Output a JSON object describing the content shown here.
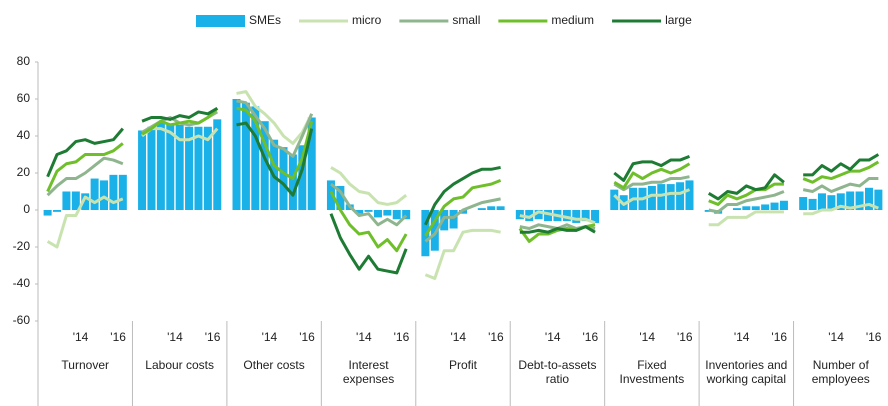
{
  "chart_data": {
    "type": "bar-line",
    "groups": [
      "Turnover",
      "Labour costs",
      "Other costs",
      "Interest expenses",
      "Profit",
      "Debt-to-assets ratio",
      "Fixed Investments",
      "Inventories and working capital",
      "Number of employees"
    ],
    "x": [
      null,
      null,
      null,
      "'14",
      null,
      null,
      null,
      "'16",
      null
    ],
    "ylim": [
      -60,
      80
    ],
    "yticks": [
      -60,
      -40,
      -20,
      0,
      20,
      40,
      60,
      80
    ],
    "grid": false,
    "series": [
      {
        "name": "SMEs",
        "type": "bar",
        "color": "#1ab0e8",
        "values": [
          [
            -3,
            -1,
            10,
            10,
            9,
            17,
            16,
            19,
            19
          ],
          [
            43,
            45,
            47,
            46,
            46,
            45,
            45,
            45,
            49
          ],
          [
            60,
            58,
            56,
            48,
            38,
            34,
            30,
            35,
            50
          ],
          [
            16,
            13,
            3,
            -2,
            -1,
            -4,
            -3,
            -5,
            -5
          ],
          [
            -25,
            -22,
            -11,
            -10,
            -2,
            0,
            1,
            2,
            2
          ],
          [
            -5,
            -6,
            -5,
            -6,
            -6,
            -6,
            -7,
            -6,
            -7
          ],
          [
            11,
            8,
            12,
            12,
            13,
            14,
            14,
            15,
            16
          ],
          [
            -1,
            -2,
            0,
            1,
            2,
            2,
            3,
            4,
            5
          ],
          [
            7,
            6,
            9,
            8,
            9,
            10,
            10,
            12,
            11
          ]
        ]
      },
      {
        "name": "micro",
        "type": "line",
        "color": "#c9e3b0",
        "values": [
          [
            -17,
            -20,
            -3,
            -3,
            7,
            4,
            7,
            4,
            6
          ],
          [
            40,
            44,
            44,
            42,
            38,
            38,
            40,
            38,
            44
          ],
          [
            63,
            64,
            56,
            52,
            47,
            40,
            36,
            42,
            52
          ],
          [
            23,
            20,
            14,
            10,
            9,
            4,
            3,
            4,
            8
          ],
          [
            -35,
            -37,
            -22,
            -22,
            -12,
            -11,
            -11,
            -11,
            -12
          ],
          [
            -3,
            -4,
            -1,
            -2,
            -3,
            -4,
            -5,
            -5,
            -7
          ],
          [
            8,
            3,
            6,
            6,
            8,
            8,
            9,
            9,
            11
          ],
          [
            -8,
            -8,
            -4,
            -4,
            -4,
            -1,
            -1,
            -1,
            -1
          ],
          [
            -2,
            -2,
            0,
            0,
            2,
            1,
            2,
            3,
            1
          ]
        ]
      },
      {
        "name": "small",
        "type": "line",
        "color": "#8fb58f",
        "values": [
          [
            8,
            13,
            17,
            17,
            20,
            24,
            28,
            27,
            25
          ],
          [
            42,
            45,
            48,
            50,
            47,
            46,
            47,
            50,
            53
          ],
          [
            59,
            58,
            51,
            44,
            35,
            33,
            29,
            40,
            52
          ],
          [
            14,
            10,
            2,
            -3,
            -2,
            -8,
            -5,
            -8,
            -3
          ],
          [
            -17,
            -13,
            -4,
            -4,
            0,
            2,
            4,
            5,
            6
          ],
          [
            -9,
            -10,
            -8,
            -9,
            -10,
            -8,
            -10,
            -9,
            -10
          ],
          [
            14,
            11,
            14,
            14,
            15,
            15,
            17,
            17,
            18
          ],
          [
            0,
            -1,
            3,
            3,
            5,
            6,
            7,
            8,
            10
          ],
          [
            11,
            10,
            13,
            10,
            12,
            14,
            13,
            17,
            17
          ]
        ]
      },
      {
        "name": "medium",
        "type": "line",
        "color": "#6fbf2a",
        "values": [
          [
            10,
            21,
            25,
            26,
            30,
            30,
            30,
            32,
            36
          ],
          [
            41,
            44,
            48,
            46,
            47,
            48,
            47,
            50,
            55
          ],
          [
            55,
            54,
            48,
            36,
            24,
            20,
            17,
            28,
            48
          ],
          [
            10,
            0,
            -8,
            -13,
            -12,
            -20,
            -16,
            -22,
            -13
          ],
          [
            -14,
            -6,
            2,
            6,
            7,
            12,
            13,
            14,
            16
          ],
          [
            -10,
            -17,
            -13,
            -13,
            -11,
            -10,
            -11,
            -9,
            -8
          ],
          [
            15,
            12,
            20,
            17,
            20,
            22,
            20,
            22,
            25
          ],
          [
            5,
            3,
            8,
            6,
            8,
            11,
            11,
            14,
            14
          ],
          [
            17,
            15,
            18,
            17,
            19,
            21,
            21,
            23,
            26
          ]
        ]
      },
      {
        "name": "large",
        "type": "line",
        "color": "#1e7b34",
        "values": [
          [
            18,
            30,
            32,
            37,
            38,
            36,
            37,
            38,
            44
          ],
          [
            48,
            50,
            50,
            49,
            51,
            50,
            53,
            52,
            55
          ],
          [
            46,
            47,
            40,
            28,
            18,
            14,
            8,
            22,
            44
          ],
          [
            -2,
            -15,
            -24,
            -32,
            -25,
            -32,
            -33,
            -34,
            -21
          ],
          [
            -8,
            3,
            10,
            14,
            17,
            20,
            22,
            22,
            23
          ],
          [
            -12,
            -12,
            -11,
            -12,
            -10,
            -11,
            -11,
            -9,
            -12
          ],
          [
            20,
            16,
            25,
            26,
            26,
            24,
            27,
            27,
            29
          ],
          [
            9,
            6,
            10,
            9,
            13,
            11,
            12,
            19,
            15
          ],
          [
            19,
            19,
            24,
            21,
            25,
            22,
            27,
            27,
            30
          ]
        ]
      }
    ]
  }
}
